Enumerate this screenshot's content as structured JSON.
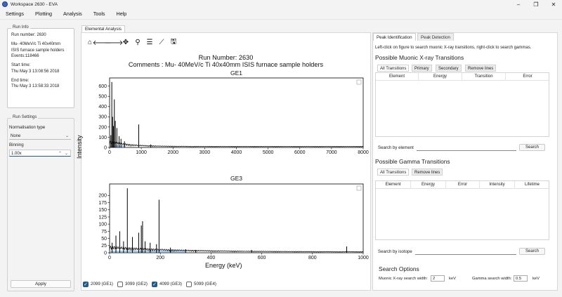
{
  "window": {
    "title": "Workspace 2630 - EVA",
    "minimize": "–",
    "maximize": "❐",
    "close": "✕"
  },
  "menu": [
    "Settings",
    "Plotting",
    "Analysis",
    "Tools",
    "Help"
  ],
  "run_info": {
    "group_title": "Run Info",
    "lines": [
      "Run number: 2630",
      "",
      "Mu- 40MeV/c Ti 40x40mm",
      "ISIS furnace sample holders",
      "Events:118466",
      "",
      "Start time:",
      "Thu May 3 13:08:56 2018",
      "",
      "End time:",
      "Thu May 3 13:58:33 2018"
    ]
  },
  "run_settings": {
    "group_title": "Run Settings",
    "normalisation_label": "Normalisation type",
    "normalisation_value": "None",
    "binning_label": "Binning",
    "binning_value": "1.00x",
    "apply_label": "Apply"
  },
  "main_tab": "Elemental Analysis",
  "toolbar_icons": [
    "home-icon",
    "back-arrow-icon",
    "forward-arrow-icon",
    "pan-icon",
    "zoom-icon",
    "configure-subplots-icon",
    "edit-axis-icon",
    "save-icon"
  ],
  "plot": {
    "run_title": "Run Number: 2630",
    "comments": "Comments : Mu- 40MeV/c Ti 40x40mm ISIS furnace sample holders",
    "ylabel": "Intensity",
    "xlabel": "Energy (keV)"
  },
  "chart_data": [
    {
      "type": "line",
      "title": "GE1",
      "xlabel": "",
      "ylabel": "Intensity",
      "xlim": [
        0,
        8000
      ],
      "ylim": [
        0,
        680
      ],
      "xticks": [
        "0",
        "1000",
        "2000",
        "3000",
        "4000",
        "5000",
        "6000",
        "7000",
        "8000"
      ],
      "yticks": [
        "0",
        "100",
        "200",
        "300",
        "400",
        "500",
        "600"
      ],
      "peaks": [
        {
          "x": 40,
          "y": 120
        },
        {
          "x": 70,
          "y": 640
        },
        {
          "x": 95,
          "y": 300
        },
        {
          "x": 120,
          "y": 210
        },
        {
          "x": 150,
          "y": 470
        },
        {
          "x": 180,
          "y": 260
        },
        {
          "x": 230,
          "y": 190
        },
        {
          "x": 300,
          "y": 110
        },
        {
          "x": 360,
          "y": 85
        },
        {
          "x": 470,
          "y": 60
        },
        {
          "x": 920,
          "y": 225
        },
        {
          "x": 1300,
          "y": 30
        }
      ],
      "color": "#000000",
      "fill_color": "#5b9bd5"
    },
    {
      "type": "line",
      "title": "GE3",
      "xlabel": "Energy (keV)",
      "ylabel": "Intensity",
      "xlim": [
        0,
        1000
      ],
      "ylim": [
        0,
        240
      ],
      "xticks": [
        "0",
        "200",
        "400",
        "600",
        "800",
        "1000"
      ],
      "yticks": [
        "0",
        "25",
        "50",
        "75",
        "100",
        "125",
        "150",
        "175",
        "200"
      ],
      "peaks": [
        {
          "x": 10,
          "y": 35
        },
        {
          "x": 25,
          "y": 60
        },
        {
          "x": 40,
          "y": 75
        },
        {
          "x": 55,
          "y": 40
        },
        {
          "x": 70,
          "y": 225
        },
        {
          "x": 90,
          "y": 55
        },
        {
          "x": 115,
          "y": 70
        },
        {
          "x": 125,
          "y": 95
        },
        {
          "x": 130,
          "y": 110
        },
        {
          "x": 140,
          "y": 40
        },
        {
          "x": 160,
          "y": 35
        },
        {
          "x": 185,
          "y": 30
        },
        {
          "x": 195,
          "y": 185
        },
        {
          "x": 240,
          "y": 18
        },
        {
          "x": 300,
          "y": 12
        },
        {
          "x": 340,
          "y": 10
        },
        {
          "x": 560,
          "y": 10
        },
        {
          "x": 935,
          "y": 22
        }
      ],
      "color": "#000000",
      "fill_color": "#5b9bd5"
    }
  ],
  "detectors": [
    {
      "label": "2099 (GE1)",
      "checked": true
    },
    {
      "label": "3099 (GE2)",
      "checked": false
    },
    {
      "label": "4099 (GE3)",
      "checked": true
    },
    {
      "label": "5099 (GE4)",
      "checked": false
    }
  ],
  "right": {
    "tabs": [
      "Peak Identification",
      "Peak Detection"
    ],
    "hint": "Left-click on figure to search muonic X-ray transitions, right-click to search gammas.",
    "muonic": {
      "title": "Possible Muonic X-ray Transitions",
      "tabs": [
        "All Transitions",
        "Primary",
        "Secondary",
        "Remove lines"
      ],
      "columns": [
        "Element",
        "Energy",
        "Transition",
        "Error"
      ],
      "search_label": "Search by element",
      "search_button": "Search"
    },
    "gamma": {
      "title": "Possible Gamma Transitions",
      "tabs": [
        "All Transitions",
        "Remove lines"
      ],
      "columns": [
        "Element",
        "Energy",
        "Error",
        "Intensity",
        "Lifetime"
      ],
      "search_label": "Search by isotope",
      "search_button": "Search"
    },
    "options": {
      "title": "Search Options",
      "muonic_width_label": "Muonic X-ray search width:",
      "muonic_width_value": "2",
      "muonic_width_unit": "keV",
      "gamma_width_label": "Gamma search width:",
      "gamma_width_value": "0.5",
      "gamma_width_unit": "keV"
    }
  }
}
